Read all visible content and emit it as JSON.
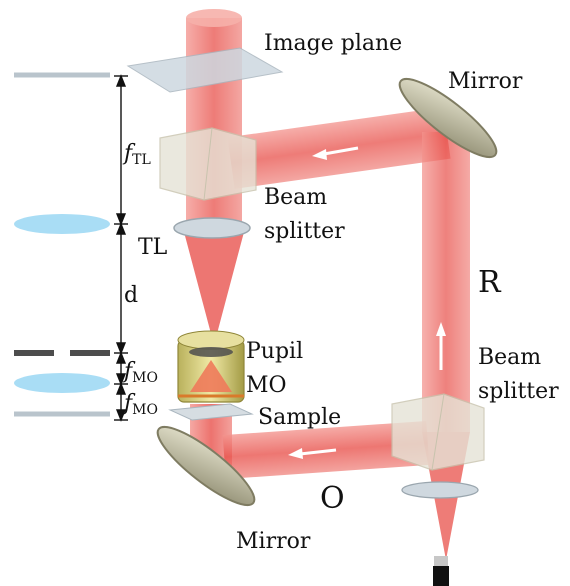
{
  "labels": {
    "image_plane": "Image plane",
    "mirror_top": "Mirror",
    "beam_splitter_top_1": "Beam",
    "beam_splitter_top_2": "splitter",
    "tl": "TL",
    "d": "d",
    "r": "R",
    "pupil": "Pupil",
    "mo": "MO",
    "sample": "Sample",
    "beam_splitter_bottom_1": "Beam",
    "beam_splitter_bottom_2": "splitter",
    "o": "O",
    "mirror_bottom": "Mirror",
    "f_symbol": "f",
    "tl_sub": "TL",
    "mo_sub": "MO"
  },
  "colors": {
    "beam": "#e8504a",
    "lens": "#a9ddf5",
    "plane": "#b9c4cc",
    "pupil_dash": "#4d4d4d",
    "mirror": "#c9c6a8",
    "splitter": "#e6e3d6"
  }
}
